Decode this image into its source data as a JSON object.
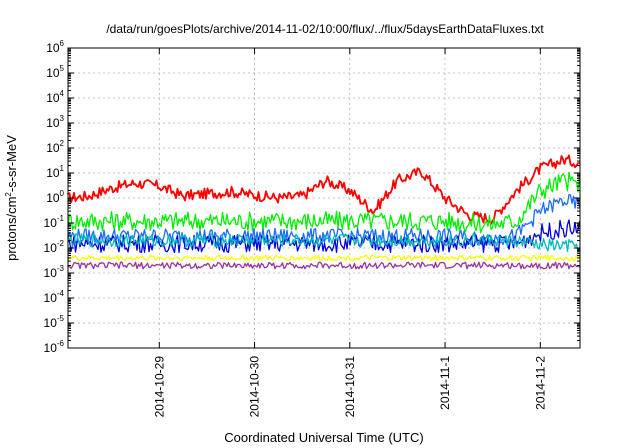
{
  "chart_data": {
    "type": "line",
    "title": "/data/run/goesPlots/archive/2014-11-02/10:00/flux/../flux/5daysEarthDataFluxes.txt",
    "xlabel": "Coordinated Universal Time (UTC)",
    "ylabel": {
      "prefix": "protons/cm",
      "sup": "2",
      "suffix": "-s-sr-MeV"
    },
    "y_scale": "log",
    "ylim_exponents": [
      -6,
      6
    ],
    "y_tick_base": "10",
    "y_tick_exponents": [
      "-6",
      "-5",
      "-4",
      "-3",
      "-2",
      "-1",
      "0",
      "1",
      "2",
      "3",
      "4",
      "5",
      "6"
    ],
    "xlim": [
      "2014-10-28 01:00",
      "2014-11-02 10:00"
    ],
    "x_ticks": [
      {
        "date": "2014-10-29",
        "label": "2014-10-29"
      },
      {
        "date": "2014-10-30",
        "label": "2014-10-30"
      },
      {
        "date": "2014-10-31",
        "label": "2014-10-31"
      },
      {
        "date": "2014-11-01",
        "label": "2014-11-1"
      },
      {
        "date": "2014-11-02",
        "label": "2014-11-2"
      }
    ],
    "grid": true,
    "x": [
      "2014-10-28 01:00",
      "2014-10-28 06:00",
      "2014-10-28 12:00",
      "2014-10-28 18:00",
      "2014-10-29 00:00",
      "2014-10-29 06:00",
      "2014-10-29 12:00",
      "2014-10-29 18:00",
      "2014-10-30 00:00",
      "2014-10-30 06:00",
      "2014-10-30 12:00",
      "2014-10-30 18:00",
      "2014-10-31 00:00",
      "2014-10-31 06:00",
      "2014-10-31 12:00",
      "2014-10-31 18:00",
      "2014-11-01 00:00",
      "2014-11-01 06:00",
      "2014-11-01 12:00",
      "2014-11-01 18:00",
      "2014-11-02 00:00",
      "2014-11-02 06:00",
      "2014-11-02 10:00"
    ],
    "series": [
      {
        "color": "#ff0000",
        "values": [
          1.0,
          1.2,
          2.5,
          4.0,
          3.0,
          1.2,
          1.5,
          1.8,
          1.3,
          1.0,
          1.2,
          5.0,
          2.0,
          0.3,
          5.0,
          12.0,
          1.0,
          0.2,
          0.15,
          2.0,
          15.0,
          35.0,
          25.0
        ]
      },
      {
        "color": "#00ee00",
        "values": [
          0.12,
          0.12,
          0.12,
          0.12,
          0.12,
          0.12,
          0.12,
          0.12,
          0.12,
          0.12,
          0.12,
          0.12,
          0.12,
          0.12,
          0.12,
          0.12,
          0.12,
          0.1,
          0.09,
          0.12,
          2.0,
          5.0,
          3.5
        ]
      },
      {
        "color": "#1a6bff",
        "values": [
          0.03,
          0.03,
          0.03,
          0.03,
          0.03,
          0.03,
          0.03,
          0.03,
          0.03,
          0.03,
          0.03,
          0.03,
          0.03,
          0.03,
          0.03,
          0.03,
          0.03,
          0.025,
          0.025,
          0.03,
          0.3,
          0.8,
          0.5
        ]
      },
      {
        "color": "#0000dd",
        "values": [
          0.015,
          0.015,
          0.015,
          0.015,
          0.015,
          0.015,
          0.015,
          0.015,
          0.015,
          0.015,
          0.015,
          0.015,
          0.015,
          0.015,
          0.015,
          0.015,
          0.015,
          0.015,
          0.015,
          0.015,
          0.04,
          0.06,
          0.06
        ]
      },
      {
        "color": "#00bbbb",
        "values": [
          0.02,
          0.02,
          0.02,
          0.02,
          0.02,
          0.02,
          0.02,
          0.02,
          0.02,
          0.02,
          0.02,
          0.02,
          0.02,
          0.02,
          0.02,
          0.02,
          0.02,
          0.02,
          0.02,
          0.018,
          0.013,
          0.012,
          0.012
        ]
      },
      {
        "color": "#ffff00",
        "values": [
          0.004,
          0.004,
          0.004,
          0.004,
          0.004,
          0.004,
          0.004,
          0.004,
          0.004,
          0.004,
          0.004,
          0.004,
          0.004,
          0.004,
          0.004,
          0.004,
          0.004,
          0.004,
          0.004,
          0.004,
          0.004,
          0.004,
          0.004
        ]
      },
      {
        "color": "#993399",
        "values": [
          0.002,
          0.002,
          0.002,
          0.002,
          0.002,
          0.002,
          0.002,
          0.002,
          0.002,
          0.002,
          0.002,
          0.002,
          0.002,
          0.002,
          0.002,
          0.002,
          0.002,
          0.002,
          0.002,
          0.002,
          0.002,
          0.002,
          0.002
        ]
      }
    ]
  }
}
